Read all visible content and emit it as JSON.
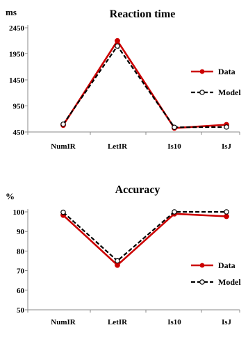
{
  "chart_data": [
    {
      "type": "line",
      "title": "Reaction time",
      "ylabel": "ms",
      "xlabel": "",
      "categories": [
        "NumIR",
        "LetIR",
        "Is10",
        "IsJ"
      ],
      "ylim": [
        450,
        2450
      ],
      "yticks": [
        "450",
        "950",
        "1450",
        "1950",
        "2450"
      ],
      "grid": false,
      "legend_position": "right",
      "series": [
        {
          "name": "Data",
          "values": [
            580,
            2200,
            525,
            590
          ],
          "color": "#cc0000",
          "style": "solid",
          "marker": "filled-circle"
        },
        {
          "name": "Model",
          "values": [
            600,
            2100,
            540,
            545
          ],
          "color": "#000000",
          "style": "dashed",
          "marker": "open-circle"
        }
      ]
    },
    {
      "type": "line",
      "title": "Accuracy",
      "ylabel": "%",
      "xlabel": "",
      "categories": [
        "NumIR",
        "LetIR",
        "Is10",
        "IsJ"
      ],
      "ylim": [
        50,
        100
      ],
      "yticks": [
        "50",
        "60",
        "70",
        "80",
        "90",
        "100"
      ],
      "grid": false,
      "legend_position": "right",
      "series": [
        {
          "name": "Data",
          "values": [
            98.3,
            72.8,
            99.0,
            97.7
          ],
          "color": "#cc0000",
          "style": "solid",
          "marker": "filled-circle"
        },
        {
          "name": "Model",
          "values": [
            99.8,
            75.0,
            100.0,
            100.0
          ],
          "color": "#000000",
          "style": "dashed",
          "marker": "open-circle"
        }
      ]
    }
  ]
}
